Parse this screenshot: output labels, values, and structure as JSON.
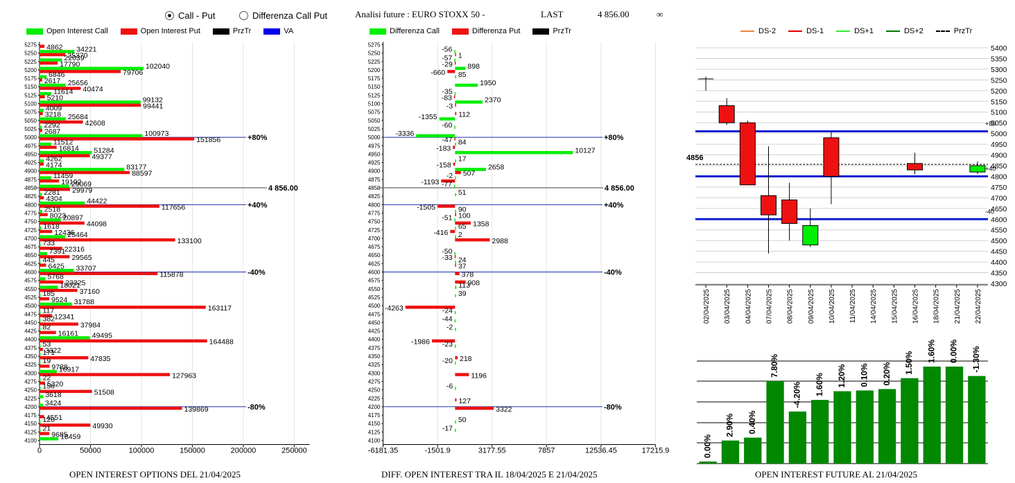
{
  "header": {
    "radio_call_put": "Call - Put",
    "radio_diff": "Differenza Call Put",
    "title": "Analisi future : EURO STOXX 50 -",
    "last_label": "LAST",
    "last_value": "4 856.00",
    "infinity": "∞"
  },
  "legends": {
    "oi": [
      {
        "label": "Open Interest Call",
        "color": "#00ee00",
        "kind": "box"
      },
      {
        "label": "Open Interest Put",
        "color": "#ee1111",
        "kind": "box"
      },
      {
        "label": "PrzTr",
        "color": "#000000",
        "kind": "box"
      },
      {
        "label": "VA",
        "color": "#0000ee",
        "kind": "box"
      }
    ],
    "diff": [
      {
        "label": "Differenza Call",
        "color": "#00ee00",
        "kind": "box"
      },
      {
        "label": "Differenza Put",
        "color": "#ee1111",
        "kind": "box"
      },
      {
        "label": "PrzTr",
        "color": "#000000",
        "kind": "box"
      }
    ],
    "candle": [
      {
        "label": "DS-2",
        "color": "#f08040",
        "kind": "line"
      },
      {
        "label": "DS-1",
        "color": "#dd0000",
        "kind": "line"
      },
      {
        "label": "DS+1",
        "color": "#33ee33",
        "kind": "line"
      },
      {
        "label": "DS+2",
        "color": "#007700",
        "kind": "line"
      },
      {
        "label": "PrzTr",
        "color": "#000000",
        "kind": "dash"
      }
    ]
  },
  "footers": {
    "oi": "OPEN INTEREST OPTIONS DEL 21/04/2025",
    "diff": "DIFF. OPEN INTEREST TRA IL 18/04/2025 E 21/04/2025",
    "future": "OPEN INTEREST FUTURE AL 21/04/2025"
  },
  "chart_data": [
    {
      "type": "bar",
      "orientation": "horizontal",
      "strikes": [
        "5275",
        "5250",
        "5225",
        "5200",
        "5175",
        "5150",
        "5125",
        "5100",
        "5075",
        "5050",
        "5025",
        "5000",
        "4975",
        "4950",
        "4925",
        "4900",
        "4875",
        "4850",
        "4825",
        "4800",
        "4775",
        "4750",
        "4725",
        "4700",
        "4675",
        "4650",
        "4625",
        "4600",
        "4575",
        "4550",
        "4525",
        "4500",
        "4475",
        "4450",
        "4425",
        "4400",
        "4375",
        "4350",
        "4325",
        "4300",
        "4275",
        "4250",
        "4225",
        "4200",
        "4175",
        "4150",
        "4125",
        "4100"
      ],
      "series": [
        {
          "name": "Open Interest Call",
          "color": "#00ee00",
          "values": [
            null,
            34221,
            22039,
            102040,
            6846,
            25656,
            11614,
            99132,
            4009,
            25684,
            2292,
            100973,
            11512,
            51284,
            4262,
            83177,
            11459,
            29069,
            2281,
            44422,
            2518,
            20897,
            1618,
            25464,
            733,
            7391,
            445,
            33707,
            5768,
            18021,
            185,
            31788,
            117,
            382,
            82,
            49495,
            53,
            171,
            19,
            16917,
            22,
            156,
            3618,
            3424,
            null,
            120,
            21,
            18459
          ]
        },
        {
          "name": "Open Interest Put",
          "color": "#ee1111",
          "values": [
            4862,
            25370,
            17790,
            79706,
            2617,
            40474,
            5210,
            99441,
            3218,
            42608,
            2687,
            151856,
            16814,
            49377,
            4174,
            88597,
            19192,
            29979,
            4304,
            117656,
            8023,
            44098,
            12436,
            133100,
            22316,
            29565,
            6425,
            115878,
            23325,
            37160,
            9524,
            163117,
            12341,
            37984,
            16161,
            164488,
            3322,
            47835,
            9788,
            127963,
            5320,
            51508,
            null,
            139869,
            4551,
            49930,
            9685,
            null
          ]
        }
      ],
      "x_ticks": [
        "0",
        "50000",
        "100000",
        "150000",
        "200000",
        "250000"
      ],
      "xlim": [
        0,
        265000
      ],
      "price_line": {
        "strike": "4850",
        "label": "4 856.00"
      },
      "va_lines": [
        {
          "strike": "5000",
          "label": "+80%"
        },
        {
          "strike": "4800",
          "label": "+40%"
        },
        {
          "strike": "4600",
          "label": "-40%"
        },
        {
          "strike": "4200",
          "label": "-80%"
        }
      ]
    },
    {
      "type": "bar",
      "orientation": "horizontal",
      "strikes": [
        "5275",
        "5250",
        "5225",
        "5200",
        "5175",
        "5150",
        "5125",
        "5100",
        "5075",
        "5050",
        "5025",
        "5000",
        "4975",
        "4950",
        "4925",
        "4900",
        "4875",
        "4850",
        "4825",
        "4800",
        "4775",
        "4750",
        "4725",
        "4700",
        "4675",
        "4650",
        "4625",
        "4600",
        "4575",
        "4550",
        "4525",
        "4500",
        "4475",
        "4450",
        "4425",
        "4400",
        "4375",
        "4350",
        "4325",
        "4300",
        "4275",
        "4250",
        "4225",
        "4200",
        "4175",
        "4150",
        "4125",
        "4100"
      ],
      "series": [
        {
          "name": "Differenza Call",
          "color": "#00ee00",
          "values": [
            null,
            -56,
            -57,
            898,
            85,
            1950,
            -35,
            2370,
            null,
            -1355,
            -60,
            -3336,
            84,
            10127,
            17,
            2658,
            -2,
            -77,
            51,
            null,
            90,
            -51,
            65,
            2,
            null,
            -50,
            24,
            null,
            null,
            113,
            39,
            null,
            -24,
            -44,
            -2,
            null,
            -23,
            null,
            -20,
            null,
            null,
            -6,
            null,
            null,
            null,
            50,
            -17,
            null
          ]
        },
        {
          "name": "Differenza Put",
          "color": "#ee1111",
          "values": [
            null,
            1,
            -29,
            -660,
            null,
            null,
            -83,
            -3,
            112,
            null,
            null,
            -47,
            -183,
            null,
            -158,
            507,
            -1193,
            null,
            null,
            -1505,
            100,
            1358,
            -416,
            2988,
            null,
            -33,
            37,
            378,
            908,
            null,
            null,
            -4263,
            null,
            null,
            null,
            -1986,
            null,
            218,
            null,
            1196,
            null,
            null,
            127,
            3322,
            null,
            null,
            null,
            null
          ]
        }
      ],
      "x_ticks": [
        "-6181.35",
        "-1501.9",
        "3177.55",
        "7857",
        "12536.45",
        "17215.9"
      ],
      "xlim": [
        -6181.35,
        17215.9
      ],
      "price_line": {
        "strike": "4850",
        "label": "4 856.00"
      },
      "va_lines": [
        {
          "strike": "5000",
          "label": "+80%"
        },
        {
          "strike": "4800",
          "label": "+40%"
        },
        {
          "strike": "4600",
          "label": "-40%"
        },
        {
          "strike": "4200",
          "label": "-80%"
        }
      ]
    },
    {
      "type": "candlestick",
      "dates": [
        "02/04/2025",
        "03/04/2025",
        "04/04/2025",
        "07/04/2025",
        "08/04/2025",
        "09/04/2025",
        "10/04/2025",
        "11/04/2025",
        "14/04/2025",
        "15/04/2025",
        "16/04/2025",
        "18/04/2025",
        "21/04/2025",
        "22/04/2025"
      ],
      "candles": [
        {
          "date": "02/04/2025",
          "open": 5255,
          "high": 5265,
          "low": 5200,
          "close": 5255,
          "color": "#000000"
        },
        {
          "date": "03/04/2025",
          "open": 5130,
          "high": 5165,
          "low": 5040,
          "close": 5050,
          "color": "#ee1111"
        },
        {
          "date": "04/04/2025",
          "open": 5050,
          "high": 5060,
          "low": 4760,
          "close": 4760,
          "color": "#ee1111"
        },
        {
          "date": "07/04/2025",
          "open": 4710,
          "high": 4940,
          "low": 4440,
          "close": 4620,
          "color": "#ee1111"
        },
        {
          "date": "08/04/2025",
          "open": 4690,
          "high": 4770,
          "low": 4500,
          "close": 4580,
          "color": "#ee1111"
        },
        {
          "date": "09/04/2025",
          "open": 4480,
          "high": 4650,
          "low": 4470,
          "close": 4570,
          "color": "#00ee00"
        },
        {
          "date": "10/04/2025",
          "open": 4980,
          "high": 5010,
          "low": 4670,
          "close": 4800,
          "color": "#ee1111"
        },
        {
          "date": "16/04/2025",
          "open": 4860,
          "high": 4910,
          "low": 4810,
          "close": 4830,
          "color": "#ee1111"
        },
        {
          "date": "22/04/2025",
          "open": 4820,
          "high": 4870,
          "low": 4810,
          "close": 4850,
          "color": "#00ee00"
        }
      ],
      "y_ticks": [
        "5400",
        "5350",
        "5300",
        "5250",
        "5200",
        "5150",
        "5100",
        "5050",
        "5000",
        "4950",
        "4900",
        "4850",
        "4800",
        "4750",
        "4700",
        "4650",
        "4600",
        "4550",
        "4500",
        "4450",
        "4400",
        "4350",
        "4300"
      ],
      "ylim": [
        4300,
        5400
      ],
      "price_line": {
        "value": 4856,
        "label": "4856"
      },
      "blue_lines": [
        {
          "value": 5010,
          "label": "+80"
        },
        {
          "value": 4800,
          "label": "+40"
        },
        {
          "value": 4600,
          "label": "-40"
        }
      ]
    },
    {
      "type": "bar",
      "values": [
        0.0,
        2.9,
        0.4,
        7.8,
        -4.2,
        1.6,
        1.2,
        0.1,
        0.2,
        1.5,
        1.6,
        0.0,
        -1.3
      ],
      "labels": [
        "0.00%",
        "2.90%",
        "0.40%",
        "7.80%",
        "-4.20%",
        "1.60%",
        "1.20%",
        "0.10%",
        "0.20%",
        "1.50%",
        "1.60%",
        "0.00%",
        "-1.30%"
      ],
      "color": "#008800"
    }
  ]
}
